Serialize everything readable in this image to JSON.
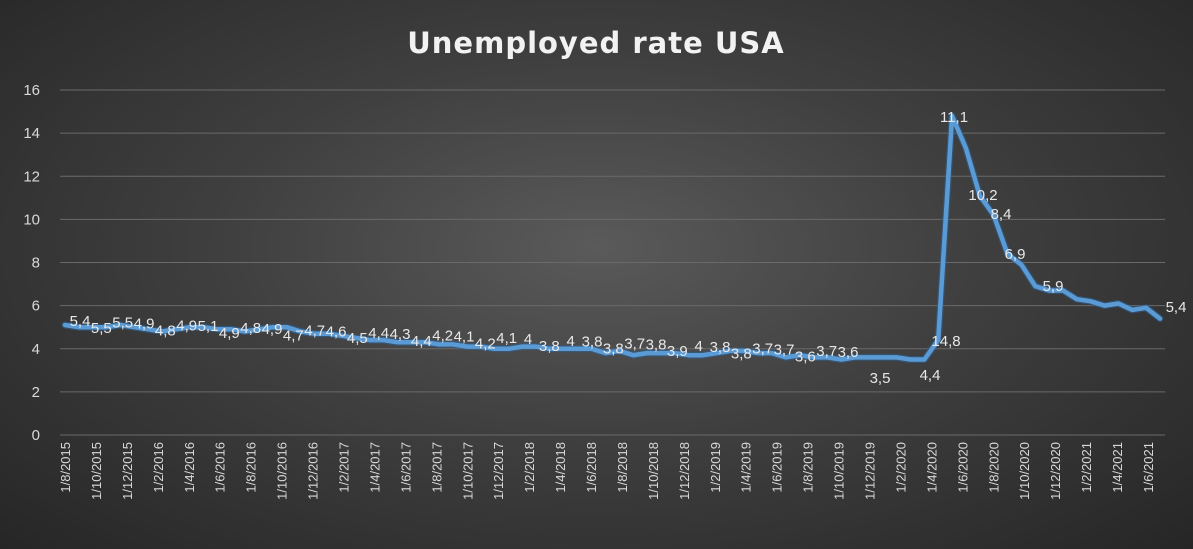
{
  "chart_data": {
    "type": "line",
    "title": "Unemployed rate USA",
    "xlabel": "",
    "ylabel": "",
    "ylim": [
      0,
      16
    ],
    "yticks": [
      "0",
      "2",
      "4",
      "6",
      "8",
      "10",
      "12",
      "14",
      "16"
    ],
    "grid": true,
    "legend": "none",
    "line_color": "#5b9bd5",
    "x_tick_labels": [
      "1/8/2015",
      "1/10/2015",
      "1/12/2015",
      "1/2/2016",
      "1/4/2016",
      "1/6/2016",
      "1/8/2016",
      "1/10/2016",
      "1/12/2016",
      "1/2/2017",
      "1/4/2017",
      "1/6/2017",
      "1/8/2017",
      "1/10/2017",
      "1/12/2017",
      "1/2/2018",
      "1/4/2018",
      "1/6/2018",
      "1/8/2018",
      "1/10/2018",
      "1/12/2018",
      "1/2/2019",
      "1/4/2019",
      "1/6/2019",
      "1/8/2019",
      "1/10/2019",
      "1/12/2019",
      "1/2/2020",
      "1/4/2020",
      "1/6/2020",
      "1/8/2020",
      "1/10/2020",
      "1/12/2020",
      "1/2/2021",
      "1/4/2021",
      "1/6/2021"
    ],
    "series": [
      {
        "values": [
          5.1,
          5.0,
          5.0,
          5.0,
          5.1,
          5.0,
          4.9,
          4.8,
          4.9,
          5.0,
          5.0,
          4.9,
          4.9,
          4.8,
          4.9,
          5.0,
          5.0,
          4.8,
          4.7,
          4.7,
          4.6,
          4.5,
          4.4,
          4.4,
          4.3,
          4.3,
          4.3,
          4.2,
          4.2,
          4.1,
          4.1,
          4.0,
          4.0,
          4.1,
          4.1,
          4.0,
          4.0,
          4.0,
          4.0,
          3.8,
          3.9,
          3.7,
          3.8,
          3.8,
          3.8,
          3.7,
          3.7,
          3.8,
          3.9,
          3.9,
          3.8,
          3.8,
          3.6,
          3.7,
          3.6,
          3.6,
          3.5,
          3.6,
          3.6,
          3.6,
          3.6,
          3.5,
          3.5,
          4.4,
          14.8,
          13.3,
          11.1,
          10.2,
          8.4,
          7.9,
          6.9,
          6.7,
          6.7,
          6.3,
          6.2,
          6.0,
          6.1,
          5.8,
          5.9,
          5.4
        ]
      }
    ],
    "data_labels": [
      "5,4",
      "5,5",
      "5,5",
      "4,9",
      "4,8",
      "4,9",
      "5,1",
      "4,9",
      "4,8",
      "4,9",
      "4,7",
      "4,7",
      "4,6",
      "4,5",
      "4,4",
      "4,3",
      "4,4",
      "4,2",
      "4,1",
      "4,2",
      "4,1",
      "4",
      "3,8",
      "4",
      "3,8",
      "3,8",
      "3,7",
      "3,8",
      "3,9",
      "4",
      "3,8",
      "3,8",
      "3,7",
      "3,7",
      "3,6",
      "3,7",
      "3,6",
      "3,5",
      "4,4",
      "14,8",
      "11,1",
      "10,2",
      "8,4",
      "6,9",
      "5,9",
      "5,4"
    ]
  }
}
